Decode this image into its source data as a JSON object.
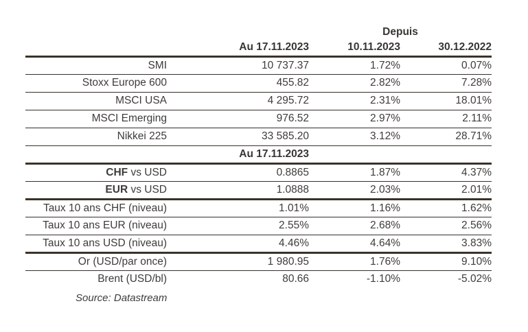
{
  "colors": {
    "text": "#3e3c39",
    "header_text": "#383633",
    "rule_thick": "#3a3229",
    "rule_thin": "#35302a",
    "background": "#ffffff"
  },
  "header": {
    "depuis": "Depuis",
    "col_value": "Au 17.11.2023",
    "col_since_week": "10.11.2023",
    "col_since_year": "30.12.2022"
  },
  "subheader": "Au 17.11.2023",
  "rows": [
    {
      "label": "SMI",
      "value": "10 737.37",
      "since_week": "1.72%",
      "since_year": "0.07%"
    },
    {
      "label": "Stoxx Europe 600",
      "value": "455.82",
      "since_week": "2.82%",
      "since_year": "7.28%"
    },
    {
      "label": "MSCI USA",
      "value": "4 295.72",
      "since_week": "2.31%",
      "since_year": "18.01%"
    },
    {
      "label": "MSCI Emerging",
      "value": "976.52",
      "since_week": "2.97%",
      "since_year": "2.11%"
    },
    {
      "label": "Nikkei 225",
      "value": "33 585.20",
      "since_week": "3.12%",
      "since_year": "28.71%"
    },
    {
      "label_bold": "CHF",
      "label_rest": " vs USD",
      "value": "0.8865",
      "since_week": "1.87%",
      "since_year": "4.37%"
    },
    {
      "label_bold": "EUR",
      "label_rest": " vs USD",
      "value": "1.0888",
      "since_week": "2.03%",
      "since_year": "2.01%"
    },
    {
      "label": "Taux 10 ans CHF (niveau)",
      "value": "1.01%",
      "since_week": "1.16%",
      "since_year": "1.62%"
    },
    {
      "label": "Taux 10 ans EUR (niveau)",
      "value": "2.55%",
      "since_week": "2.68%",
      "since_year": "2.56%"
    },
    {
      "label": "Taux 10 ans USD (niveau)",
      "value": "4.46%",
      "since_week": "4.64%",
      "since_year": "3.83%"
    },
    {
      "label": "Or (USD/par once)",
      "value": "1 980.95",
      "since_week": "1.76%",
      "since_year": "9.10%"
    },
    {
      "label": "Brent (USD/bl)",
      "value": "80.66",
      "since_week": "-1.10%",
      "since_year": "-5.02%"
    }
  ],
  "source": "Source: Datastream"
}
